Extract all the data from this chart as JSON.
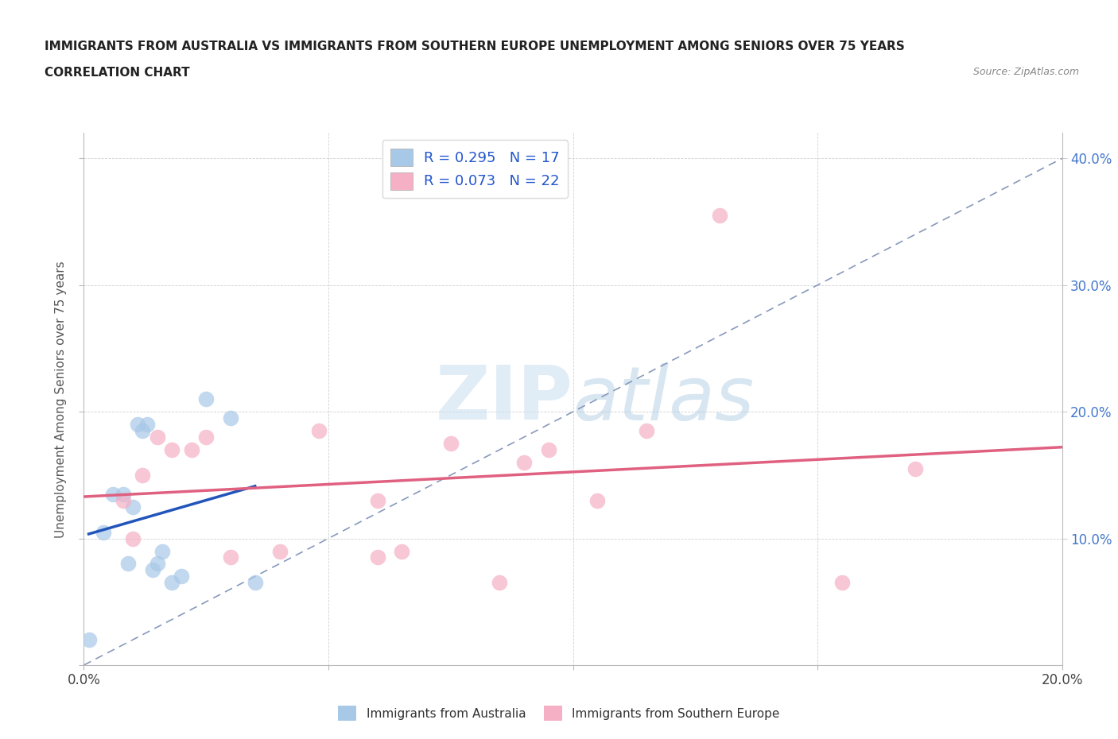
{
  "title_line1": "IMMIGRANTS FROM AUSTRALIA VS IMMIGRANTS FROM SOUTHERN EUROPE UNEMPLOYMENT AMONG SENIORS OVER 75 YEARS",
  "title_line2": "CORRELATION CHART",
  "source": "Source: ZipAtlas.com",
  "ylabel": "Unemployment Among Seniors over 75 years",
  "xlim": [
    0.0,
    0.2
  ],
  "ylim": [
    0.0,
    0.42
  ],
  "australia_R": 0.295,
  "australia_N": 17,
  "southern_europe_R": 0.073,
  "southern_europe_N": 22,
  "australia_color": "#a8c8e8",
  "southern_europe_color": "#f5b0c5",
  "australia_line_color": "#2255bb",
  "southern_europe_line_color": "#e06080",
  "diagonal_color": "#8899bb",
  "watermark_zip": "ZIP",
  "watermark_atlas": "atlas",
  "australia_x": [
    0.001,
    0.004,
    0.006,
    0.008,
    0.009,
    0.01,
    0.011,
    0.012,
    0.013,
    0.014,
    0.015,
    0.016,
    0.018,
    0.02,
    0.025,
    0.03,
    0.035
  ],
  "australia_y": [
    0.02,
    0.105,
    0.135,
    0.135,
    0.08,
    0.125,
    0.19,
    0.185,
    0.19,
    0.075,
    0.08,
    0.09,
    0.065,
    0.07,
    0.21,
    0.195,
    0.065
  ],
  "southern_europe_x": [
    0.008,
    0.01,
    0.012,
    0.015,
    0.018,
    0.022,
    0.025,
    0.03,
    0.04,
    0.048,
    0.06,
    0.065,
    0.075,
    0.09,
    0.095,
    0.105,
    0.115,
    0.13,
    0.155,
    0.085,
    0.06,
    0.17
  ],
  "southern_europe_y": [
    0.13,
    0.1,
    0.15,
    0.18,
    0.17,
    0.17,
    0.18,
    0.085,
    0.09,
    0.185,
    0.085,
    0.09,
    0.175,
    0.16,
    0.17,
    0.13,
    0.185,
    0.355,
    0.065,
    0.065,
    0.13,
    0.155
  ]
}
